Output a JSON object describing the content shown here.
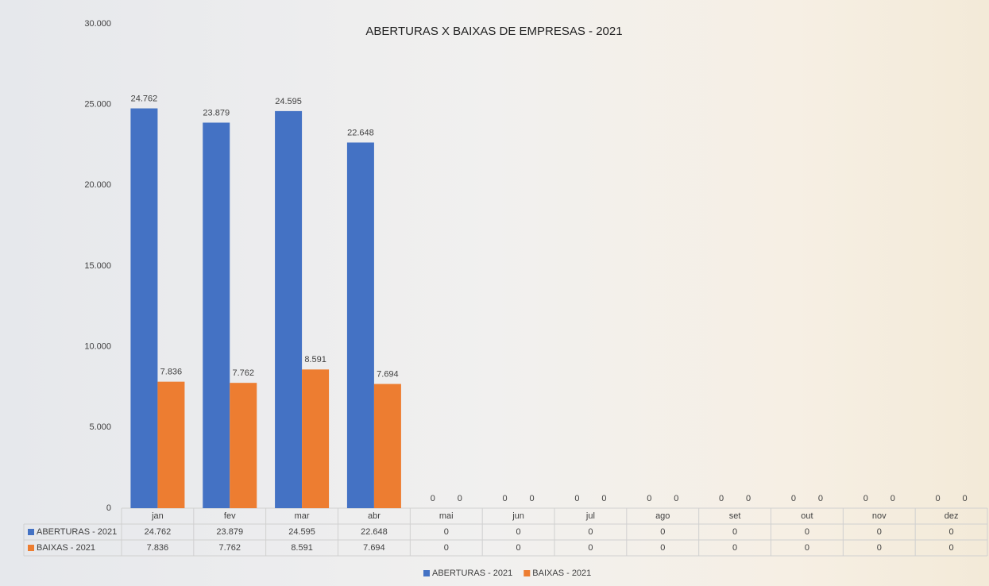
{
  "chart_data": {
    "type": "bar",
    "title": "ABERTURAS X BAIXAS DE EMPRESAS - 2021",
    "categories": [
      "jan",
      "fev",
      "mar",
      "abr",
      "mai",
      "jun",
      "jul",
      "ago",
      "set",
      "out",
      "nov",
      "dez"
    ],
    "series": [
      {
        "name": "ABERTURAS - 2021",
        "color": "#4472c4",
        "values": [
          24762,
          23879,
          24595,
          22648,
          0,
          0,
          0,
          0,
          0,
          0,
          0,
          0
        ],
        "value_labels": [
          "24.762",
          "23.879",
          "24.595",
          "22.648",
          "0",
          "0",
          "0",
          "0",
          "0",
          "0",
          "0",
          "0"
        ]
      },
      {
        "name": "BAIXAS - 2021",
        "color": "#ed7d31",
        "values": [
          7836,
          7762,
          8591,
          7694,
          0,
          0,
          0,
          0,
          0,
          0,
          0,
          0
        ],
        "value_labels": [
          "7.836",
          "7.762",
          "8.591",
          "7.694",
          "0",
          "0",
          "0",
          "0",
          "0",
          "0",
          "0",
          "0"
        ]
      }
    ],
    "ylim": [
      0,
      30000
    ],
    "yticks": [
      0,
      {
        "value": 5000,
        "label": "5.000"
      },
      {
        "value": 10000,
        "label": "10.000"
      },
      {
        "value": 15000,
        "label": "15.000"
      },
      {
        "value": 20000,
        "label": "20.000"
      },
      {
        "value": 25000,
        "label": "25.000"
      },
      {
        "value": 30000,
        "label": "30.000"
      }
    ],
    "grid": false,
    "legend": "bottom"
  }
}
